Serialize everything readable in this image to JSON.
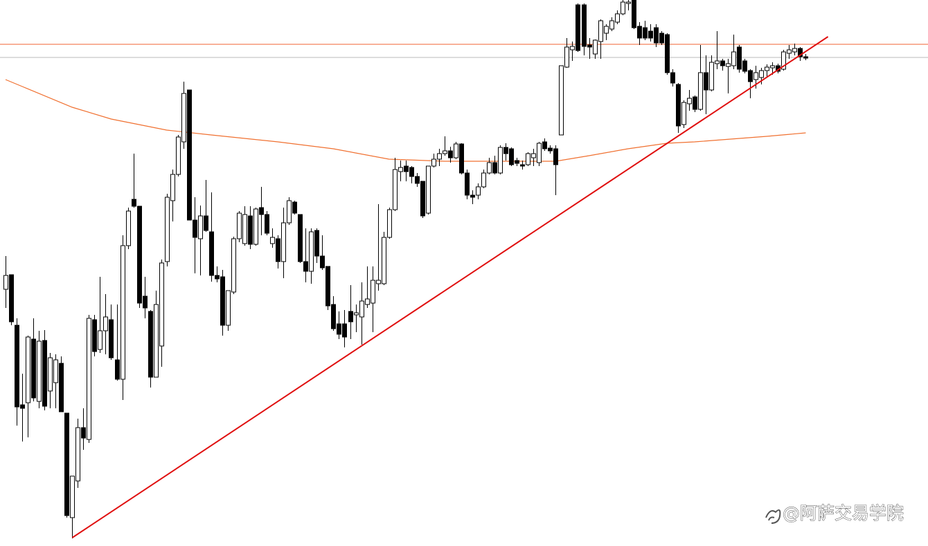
{
  "chart_data": {
    "type": "candlestick",
    "watermark": "@阿萨交易学院",
    "ylim": [
      211,
      1000
    ],
    "xlim": [
      -1,
      166
    ],
    "up_color": "#ffffff",
    "down_color": "#000000",
    "wick_color": "#000000",
    "ohlc": [
      [
        582,
        630,
        555,
        602
      ],
      [
        603,
        603,
        530,
        535
      ],
      [
        530,
        540,
        385,
        412
      ],
      [
        415,
        460,
        362,
        410
      ],
      [
        418,
        515,
        368,
        513
      ],
      [
        510,
        540,
        420,
        425
      ],
      [
        420,
        522,
        410,
        507
      ],
      [
        508,
        523,
        407,
        413
      ],
      [
        435,
        490,
        410,
        483
      ],
      [
        447,
        488,
        410,
        480
      ],
      [
        475,
        485,
        405,
        405
      ],
      [
        403,
        403,
        252,
        255
      ],
      [
        252,
        312,
        222,
        312
      ],
      [
        305,
        395,
        295,
        382
      ],
      [
        382,
        410,
        350,
        367
      ],
      [
        365,
        545,
        360,
        540
      ],
      [
        538,
        545,
        485,
        492
      ],
      [
        495,
        600,
        490,
        522
      ],
      [
        522,
        575,
        488,
        542
      ],
      [
        538,
        560,
        480,
        483
      ],
      [
        480,
        560,
        450,
        452
      ],
      [
        452,
        660,
        422,
        645
      ],
      [
        645,
        700,
        640,
        695
      ],
      [
        712,
        778,
        700,
        702
      ],
      [
        702,
        702,
        555,
        562
      ],
      [
        572,
        600,
        540,
        555
      ],
      [
        550,
        552,
        440,
        455
      ],
      [
        455,
        580,
        455,
        560
      ],
      [
        500,
        625,
        470,
        620
      ],
      [
        622,
        720,
        615,
        715
      ],
      [
        710,
        755,
        680,
        748
      ],
      [
        748,
        805,
        745,
        802
      ],
      [
        795,
        882,
        785,
        865
      ],
      [
        870,
        870,
        682,
        682
      ],
      [
        682,
        715,
        605,
        657
      ],
      [
        655,
        703,
        602,
        688
      ],
      [
        688,
        740,
        665,
        667
      ],
      [
        665,
        722,
        593,
        602
      ],
      [
        602,
        615,
        592,
        597
      ],
      [
        600,
        610,
        515,
        530
      ],
      [
        530,
        580,
        522,
        580
      ],
      [
        578,
        658,
        575,
        655
      ],
      [
        655,
        695,
        650,
        692
      ],
      [
        648,
        702,
        645,
        690
      ],
      [
        688,
        702,
        640,
        647
      ],
      [
        647,
        700,
        645,
        698
      ],
      [
        700,
        730,
        660,
        690
      ],
      [
        690,
        695,
        660,
        663
      ],
      [
        648,
        670,
        642,
        657
      ],
      [
        655,
        660,
        612,
        622
      ],
      [
        622,
        700,
        598,
        678
      ],
      [
        678,
        715,
        675,
        710
      ],
      [
        708,
        710,
        690,
        692
      ],
      [
        690,
        690,
        620,
        622
      ],
      [
        622,
        670,
        592,
        608
      ],
      [
        608,
        670,
        590,
        665
      ],
      [
        667,
        670,
        620,
        630
      ],
      [
        630,
        660,
        610,
        613
      ],
      [
        615,
        615,
        552,
        558
      ],
      [
        560,
        572,
        522,
        525
      ],
      [
        532,
        550,
        510,
        517
      ],
      [
        532,
        552,
        498,
        513
      ],
      [
        550,
        588,
        510,
        535
      ],
      [
        545,
        560,
        520,
        548
      ],
      [
        542,
        592,
        502,
        565
      ],
      [
        560,
        615,
        555,
        568
      ],
      [
        562,
        615,
        520,
        595
      ],
      [
        590,
        705,
        580,
        595
      ],
      [
        590,
        665,
        588,
        657
      ],
      [
        657,
        700,
        655,
        697
      ],
      [
        697,
        772,
        695,
        755
      ],
      [
        752,
        768,
        738,
        758
      ],
      [
        760,
        768,
        738,
        752
      ],
      [
        758,
        760,
        735,
        745
      ],
      [
        745,
        750,
        730,
        735
      ],
      [
        738,
        738,
        685,
        688
      ],
      [
        692,
        760,
        690,
        760
      ],
      [
        760,
        778,
        758,
        770
      ],
      [
        770,
        785,
        760,
        778
      ],
      [
        778,
        803,
        775,
        782
      ],
      [
        782,
        788,
        765,
        772
      ],
      [
        772,
        795,
        770,
        792
      ],
      [
        792,
        793,
        748,
        750
      ],
      [
        750,
        755,
        712,
        718
      ],
      [
        718,
        725,
        705,
        715
      ],
      [
        718,
        735,
        712,
        730
      ],
      [
        730,
        755,
        728,
        750
      ],
      [
        750,
        772,
        748,
        765
      ],
      [
        765,
        775,
        748,
        750
      ],
      [
        750,
        790,
        748,
        787
      ],
      [
        787,
        793,
        768,
        778
      ],
      [
        785,
        787,
        760,
        762
      ],
      [
        768,
        772,
        760,
        764
      ],
      [
        762,
        768,
        755,
        760
      ],
      [
        762,
        780,
        760,
        778
      ],
      [
        772,
        785,
        760,
        778
      ],
      [
        765,
        795,
        760,
        793
      ],
      [
        795,
        800,
        782,
        785
      ],
      [
        786,
        790,
        778,
        782
      ],
      [
        785,
        790,
        718,
        762
      ],
      [
        805,
        905,
        805,
        905
      ],
      [
        903,
        945,
        902,
        932
      ],
      [
        928,
        940,
        912,
        933
      ],
      [
        993,
        995,
        925,
        927
      ],
      [
        993,
        995,
        920,
        933
      ],
      [
        935,
        945,
        915,
        932
      ],
      [
        922,
        943,
        915,
        942
      ],
      [
        940,
        972,
        915,
        970
      ],
      [
        952,
        965,
        942,
        962
      ],
      [
        958,
        975,
        955,
        970
      ],
      [
        968,
        985,
        965,
        980
      ],
      [
        980,
        1000,
        978,
        997
      ],
      [
        995,
        1000,
        985,
        997
      ],
      [
        1000,
        1000,
        958,
        960
      ],
      [
        962,
        968,
        935,
        945
      ],
      [
        960,
        970,
        942,
        945
      ],
      [
        955,
        965,
        940,
        945
      ],
      [
        960,
        965,
        932,
        938
      ],
      [
        952,
        955,
        935,
        938
      ],
      [
        950,
        952,
        892,
        895
      ],
      [
        895,
        900,
        875,
        880
      ],
      [
        878,
        880,
        808,
        818
      ],
      [
        820,
        855,
        815,
        852
      ],
      [
        850,
        870,
        840,
        858
      ],
      [
        860,
        862,
        838,
        842
      ],
      [
        842,
        935,
        840,
        895
      ],
      [
        895,
        920,
        835,
        870
      ],
      [
        870,
        920,
        868,
        910
      ],
      [
        908,
        955,
        900,
        912
      ],
      [
        912,
        915,
        898,
        905
      ],
      [
        904,
        915,
        865,
        908
      ],
      [
        905,
        950,
        900,
        925
      ],
      [
        932,
        935,
        895,
        900
      ],
      [
        912,
        915,
        894,
        897
      ],
      [
        898,
        900,
        858,
        882
      ],
      [
        885,
        905,
        872,
        895
      ],
      [
        888,
        902,
        878,
        898
      ],
      [
        898,
        907,
        888,
        903
      ],
      [
        902,
        910,
        892,
        905
      ],
      [
        905,
        908,
        894,
        897
      ],
      [
        900,
        928,
        898,
        925
      ],
      [
        923,
        935,
        915,
        928
      ],
      [
        925,
        937,
        920,
        930
      ],
      [
        930,
        932,
        912,
        918
      ],
      [
        918,
        922,
        913,
        916
      ]
    ],
    "ma": {
      "color": "#f07030",
      "x": [
        0,
        3,
        12,
        19,
        24,
        29,
        37,
        49,
        59,
        69,
        79,
        87,
        99,
        105,
        112,
        119,
        124,
        137,
        144
      ],
      "values": [
        885,
        875,
        845,
        828,
        820,
        812,
        805,
        795,
        785,
        770,
        767,
        767,
        767,
        775,
        785,
        793,
        795,
        803,
        808
      ]
    },
    "trendline": {
      "color": "#e01010",
      "x": [
        12,
        148
      ],
      "values": [
        223,
        947
      ]
    },
    "hlines": [
      {
        "value": 936,
        "color": "#f06030"
      },
      {
        "value": 917,
        "color": "#b8b8b8"
      }
    ]
  }
}
